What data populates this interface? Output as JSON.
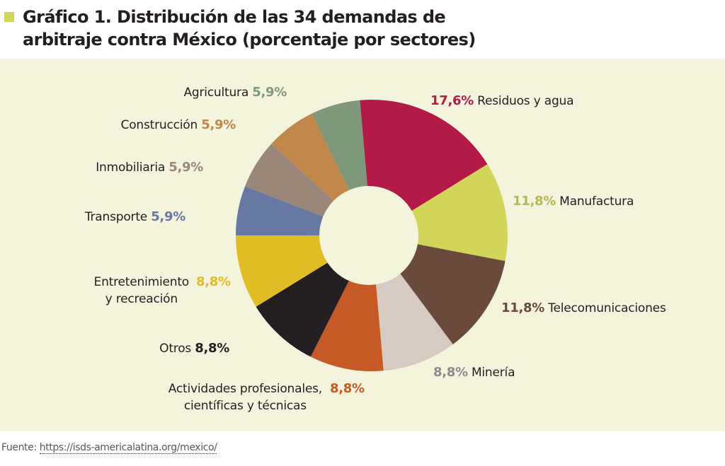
{
  "header": {
    "title_line1": "Gráfico 1. Distribución de las 34 demandas de",
    "title_line2": "arbitraje contra México (porcentaje por sectores)",
    "accent_color": "#d1d659"
  },
  "footer": {
    "source_prefix": "Fuente: ",
    "source_link": "https://isds-americalatina.org/mexico/"
  },
  "chart_data": {
    "type": "pie",
    "variant": "donut",
    "title": "Gráfico 1. Distribución de las 34 demandas de arbitraje contra México (porcentaje por sectores)",
    "unit": "%",
    "start_angle_deg": -5,
    "direction": "clockwise",
    "slices": [
      {
        "name": "Residuos y agua",
        "label_lines": [
          "Residuos y agua"
        ],
        "value": 17.6,
        "value_label": "17,6%",
        "color": "#b41a48",
        "pct_color": "#b41a48"
      },
      {
        "name": "Manufactura",
        "label_lines": [
          "Manufactura"
        ],
        "value": 11.8,
        "value_label": "11,8%",
        "color": "#d2d55a",
        "pct_color": "#b5b850"
      },
      {
        "name": "Telecomunicaciones",
        "label_lines": [
          "Telecomunicaciones"
        ],
        "value": 11.8,
        "value_label": "11,8%",
        "color": "#6a4a3c",
        "pct_color": "#6a4a3c"
      },
      {
        "name": "Minería",
        "label_lines": [
          "Minería"
        ],
        "value": 8.8,
        "value_label": "8,8%",
        "color": "#d6cac1",
        "pct_color": "#8e8a88"
      },
      {
        "name": "Actividades profesionales, científicas y técnicas",
        "label_lines": [
          "Actividades profesionales,",
          "científicas y técnicas"
        ],
        "value": 8.8,
        "value_label": "8,8%",
        "color": "#c55a27",
        "pct_color": "#c55a27"
      },
      {
        "name": "Otros",
        "label_lines": [
          "Otros"
        ],
        "value": 8.8,
        "value_label": "8,8%",
        "color": "#231f20",
        "pct_color": "#231f20"
      },
      {
        "name": "Entretenimiento y recreación",
        "label_lines": [
          "Entretenimiento",
          "y recreación"
        ],
        "value": 8.8,
        "value_label": "8,8%",
        "color": "#e0bd24",
        "pct_color": "#e0bd24"
      },
      {
        "name": "Transporte",
        "label_lines": [
          "Transporte"
        ],
        "value": 5.9,
        "value_label": "5,9%",
        "color": "#6779a3",
        "pct_color": "#6779a3"
      },
      {
        "name": "Inmobiliaria",
        "label_lines": [
          "Inmobiliaria"
        ],
        "value": 5.9,
        "value_label": "5,9%",
        "color": "#9b877a",
        "pct_color": "#9b877a"
      },
      {
        "name": "Construcción",
        "label_lines": [
          "Construcción"
        ],
        "value": 5.9,
        "value_label": "5,9%",
        "color": "#c0874b",
        "pct_color": "#c0874b"
      },
      {
        "name": "Agricultura",
        "label_lines": [
          "Agricultura"
        ],
        "value": 5.9,
        "value_label": "5,9%",
        "color": "#7f977a",
        "pct_color": "#7f977a"
      }
    ],
    "hole_color": "#f4f4dd",
    "legend": "none"
  }
}
